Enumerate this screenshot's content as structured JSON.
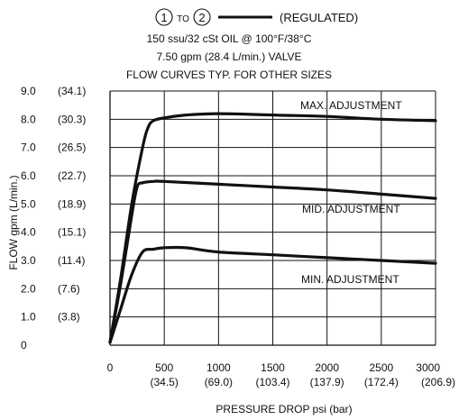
{
  "chart_data": {
    "type": "line",
    "legend": {
      "port_from": "1",
      "connector": "TO",
      "port_to": "2",
      "label": "(REGULATED)"
    },
    "title_lines": [
      "150 ssu/32 cSt OIL @ 100°F/38°C",
      "7.50 gpm  (28.4 L/min.) VALVE",
      "FLOW CURVES TYP. FOR OTHER SIZES"
    ],
    "xlabel": "PRESSURE DROP psi  (bar)",
    "ylabel": "FLOW gpm (L/min.)",
    "xlim": [
      0,
      3000
    ],
    "ylim": [
      0,
      9
    ],
    "grid": true,
    "x_ticks": [
      {
        "value": 0,
        "label": "0",
        "sublabel": ""
      },
      {
        "value": 500,
        "label": "500",
        "sublabel": "(34.5)"
      },
      {
        "value": 1000,
        "label": "1000",
        "sublabel": "(69.0)"
      },
      {
        "value": 1500,
        "label": "1500",
        "sublabel": "(103.4)"
      },
      {
        "value": 2000,
        "label": "2000",
        "sublabel": "(137.9)"
      },
      {
        "value": 2500,
        "label": "2500",
        "sublabel": "(172.4)"
      },
      {
        "value": 3000,
        "label": "3000",
        "sublabel": "(206.9)"
      }
    ],
    "y_ticks": [
      {
        "value": 0,
        "label": "0",
        "sublabel": ""
      },
      {
        "value": 1,
        "label": "1.0",
        "sublabel": "(3.8)"
      },
      {
        "value": 2,
        "label": "2.0",
        "sublabel": "(7.6)"
      },
      {
        "value": 3,
        "label": "3.0",
        "sublabel": "(11.4)"
      },
      {
        "value": 4,
        "label": "4.0",
        "sublabel": "(15.1)"
      },
      {
        "value": 5,
        "label": "5.0",
        "sublabel": "(18.9)"
      },
      {
        "value": 6,
        "label": "6.0",
        "sublabel": "(22.7)"
      },
      {
        "value": 7,
        "label": "7.0",
        "sublabel": "(26.5)"
      },
      {
        "value": 8,
        "label": "8.0",
        "sublabel": "(30.3)"
      },
      {
        "value": 9,
        "label": "9.0",
        "sublabel": "(34.1)"
      }
    ],
    "series": [
      {
        "name": "MAX. ADJUSTMENT",
        "points": [
          [
            0,
            0.1
          ],
          [
            100,
            2.4
          ],
          [
            200,
            5.0
          ],
          [
            300,
            7.0
          ],
          [
            350,
            7.7
          ],
          [
            400,
            7.95
          ],
          [
            500,
            8.05
          ],
          [
            700,
            8.15
          ],
          [
            1000,
            8.2
          ],
          [
            1500,
            8.15
          ],
          [
            2000,
            8.1
          ],
          [
            2500,
            8.0
          ],
          [
            3000,
            7.95
          ]
        ]
      },
      {
        "name": "MID. ADJUSTMENT",
        "points": [
          [
            0,
            0.1
          ],
          [
            100,
            2.2
          ],
          [
            200,
            4.6
          ],
          [
            250,
            5.6
          ],
          [
            300,
            5.75
          ],
          [
            400,
            5.8
          ],
          [
            500,
            5.8
          ],
          [
            1000,
            5.7
          ],
          [
            1500,
            5.6
          ],
          [
            2000,
            5.5
          ],
          [
            2500,
            5.35
          ],
          [
            3000,
            5.2
          ]
        ]
      },
      {
        "name": "MIN. ADJUSTMENT",
        "points": [
          [
            0,
            0.1
          ],
          [
            100,
            1.3
          ],
          [
            200,
            2.5
          ],
          [
            300,
            3.3
          ],
          [
            400,
            3.4
          ],
          [
            500,
            3.45
          ],
          [
            700,
            3.45
          ],
          [
            1000,
            3.3
          ],
          [
            1500,
            3.2
          ],
          [
            2000,
            3.1
          ],
          [
            2500,
            3.0
          ],
          [
            3000,
            2.9
          ]
        ]
      }
    ],
    "colors": {
      "line": "#111111",
      "grid": "#111111",
      "text": "#111111"
    }
  }
}
